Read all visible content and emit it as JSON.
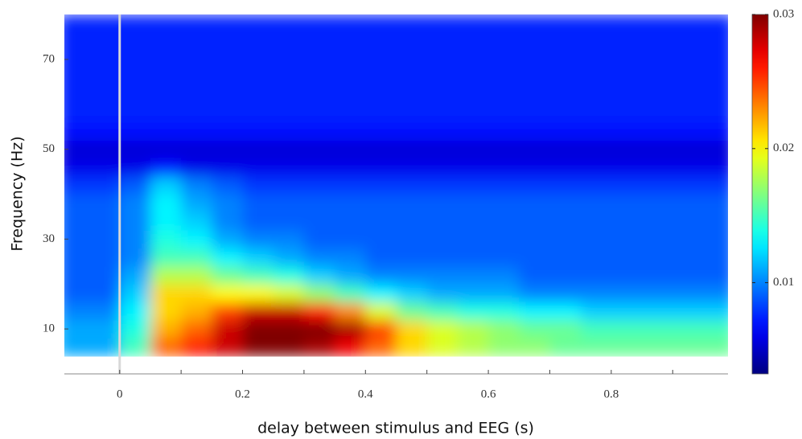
{
  "chart_data": {
    "type": "heatmap",
    "xlabel": "delay between stimulus and EEG (s)",
    "ylabel": "Frequency (Hz)",
    "xlim": [
      -0.09,
      0.99
    ],
    "ylim": [
      0,
      80
    ],
    "xticks": [
      0,
      0.2,
      0.4,
      0.6,
      0.8
    ],
    "xminorticks": [
      0.1,
      0.3,
      0.5,
      0.7,
      0.9
    ],
    "yticks": [
      10,
      30,
      50,
      70
    ],
    "clim": [
      0.0032,
      0.03
    ],
    "cticks": [
      0.01,
      0.02,
      0.03
    ],
    "colormap": "jet",
    "vertical_line": {
      "x": 0,
      "color": "#d8d8d8"
    },
    "x": [
      -0.075,
      -0.025,
      0.025,
      0.075,
      0.125,
      0.175,
      0.225,
      0.275,
      0.325,
      0.375,
      0.425,
      0.475,
      0.525,
      0.575,
      0.625,
      0.675,
      0.725,
      0.775,
      0.825,
      0.875,
      0.925,
      0.975
    ],
    "y": [
      6,
      10,
      14,
      18,
      22,
      26,
      30,
      34,
      38,
      42,
      46,
      50,
      54,
      58,
      62,
      66,
      70,
      74,
      78
    ],
    "z": [
      [
        0.011,
        0.011,
        0.015,
        0.024,
        0.026,
        0.028,
        0.031,
        0.031,
        0.029,
        0.027,
        0.024,
        0.021,
        0.019,
        0.018,
        0.017,
        0.017,
        0.016,
        0.016,
        0.016,
        0.016,
        0.016,
        0.016
      ],
      [
        0.011,
        0.011,
        0.014,
        0.022,
        0.024,
        0.028,
        0.031,
        0.032,
        0.031,
        0.029,
        0.025,
        0.021,
        0.019,
        0.018,
        0.017,
        0.016,
        0.016,
        0.015,
        0.015,
        0.015,
        0.015,
        0.015
      ],
      [
        0.01,
        0.01,
        0.013,
        0.021,
        0.022,
        0.025,
        0.028,
        0.028,
        0.026,
        0.023,
        0.019,
        0.016,
        0.015,
        0.014,
        0.014,
        0.013,
        0.013,
        0.012,
        0.012,
        0.012,
        0.012,
        0.012
      ],
      [
        0.009,
        0.009,
        0.012,
        0.021,
        0.021,
        0.02,
        0.02,
        0.019,
        0.017,
        0.015,
        0.013,
        0.012,
        0.011,
        0.011,
        0.011,
        0.01,
        0.01,
        0.01,
        0.01,
        0.01,
        0.01,
        0.01
      ],
      [
        0.009,
        0.009,
        0.011,
        0.018,
        0.018,
        0.016,
        0.015,
        0.014,
        0.012,
        0.011,
        0.01,
        0.01,
        0.01,
        0.01,
        0.01,
        0.009,
        0.009,
        0.009,
        0.009,
        0.009,
        0.009,
        0.009
      ],
      [
        0.009,
        0.009,
        0.01,
        0.015,
        0.015,
        0.013,
        0.012,
        0.011,
        0.01,
        0.01,
        0.009,
        0.009,
        0.009,
        0.009,
        0.009,
        0.009,
        0.009,
        0.009,
        0.009,
        0.009,
        0.009,
        0.009
      ],
      [
        0.009,
        0.009,
        0.01,
        0.014,
        0.013,
        0.011,
        0.01,
        0.01,
        0.009,
        0.009,
        0.009,
        0.009,
        0.009,
        0.009,
        0.009,
        0.009,
        0.009,
        0.009,
        0.009,
        0.009,
        0.009,
        0.009
      ],
      [
        0.009,
        0.009,
        0.01,
        0.013,
        0.012,
        0.01,
        0.009,
        0.009,
        0.009,
        0.009,
        0.009,
        0.009,
        0.009,
        0.009,
        0.009,
        0.009,
        0.009,
        0.009,
        0.009,
        0.009,
        0.009,
        0.009
      ],
      [
        0.009,
        0.009,
        0.01,
        0.013,
        0.011,
        0.01,
        0.009,
        0.009,
        0.009,
        0.009,
        0.009,
        0.009,
        0.009,
        0.009,
        0.009,
        0.009,
        0.009,
        0.009,
        0.009,
        0.009,
        0.009,
        0.009
      ],
      [
        0.008,
        0.008,
        0.009,
        0.012,
        0.01,
        0.009,
        0.008,
        0.008,
        0.008,
        0.008,
        0.008,
        0.008,
        0.008,
        0.008,
        0.008,
        0.008,
        0.008,
        0.008,
        0.008,
        0.008,
        0.008,
        0.008
      ],
      [
        0.006,
        0.006,
        0.006,
        0.007,
        0.006,
        0.006,
        0.006,
        0.006,
        0.006,
        0.006,
        0.006,
        0.006,
        0.006,
        0.006,
        0.006,
        0.006,
        0.006,
        0.006,
        0.006,
        0.006,
        0.006,
        0.006
      ],
      [
        0.0055,
        0.0055,
        0.0055,
        0.0055,
        0.0055,
        0.0055,
        0.0055,
        0.0055,
        0.0055,
        0.0055,
        0.0055,
        0.0055,
        0.0055,
        0.0055,
        0.0055,
        0.0055,
        0.0055,
        0.0055,
        0.0055,
        0.0055,
        0.0055,
        0.0055
      ],
      [
        0.007,
        0.007,
        0.007,
        0.007,
        0.007,
        0.007,
        0.007,
        0.007,
        0.007,
        0.007,
        0.007,
        0.007,
        0.007,
        0.007,
        0.007,
        0.007,
        0.007,
        0.007,
        0.007,
        0.007,
        0.007,
        0.007
      ],
      [
        0.0075,
        0.0075,
        0.0075,
        0.0075,
        0.0075,
        0.0075,
        0.0075,
        0.0075,
        0.0075,
        0.0075,
        0.0075,
        0.0075,
        0.0075,
        0.0075,
        0.0075,
        0.0075,
        0.0075,
        0.0075,
        0.0075,
        0.0075,
        0.0075,
        0.0075
      ],
      [
        0.0075,
        0.0075,
        0.0075,
        0.0075,
        0.0075,
        0.0075,
        0.0075,
        0.0075,
        0.0075,
        0.0075,
        0.0075,
        0.0075,
        0.0075,
        0.0075,
        0.0075,
        0.0075,
        0.0075,
        0.0075,
        0.0075,
        0.0075,
        0.0075,
        0.0075
      ],
      [
        0.0075,
        0.0075,
        0.0075,
        0.0075,
        0.0075,
        0.0075,
        0.0075,
        0.0075,
        0.0075,
        0.0075,
        0.0075,
        0.0075,
        0.0075,
        0.0075,
        0.0075,
        0.0075,
        0.0075,
        0.0075,
        0.0075,
        0.0075,
        0.0075,
        0.0075
      ],
      [
        0.0075,
        0.0075,
        0.0075,
        0.0075,
        0.0075,
        0.0075,
        0.0075,
        0.0075,
        0.0075,
        0.0075,
        0.0075,
        0.0075,
        0.0075,
        0.0075,
        0.0075,
        0.0075,
        0.0075,
        0.0075,
        0.0075,
        0.0075,
        0.0075,
        0.0075
      ],
      [
        0.0075,
        0.0075,
        0.0075,
        0.0075,
        0.0075,
        0.0075,
        0.0075,
        0.0075,
        0.0075,
        0.0075,
        0.0075,
        0.0075,
        0.0075,
        0.0075,
        0.0075,
        0.0075,
        0.0075,
        0.0075,
        0.0075,
        0.0075,
        0.0075,
        0.0075
      ],
      [
        0.0075,
        0.0075,
        0.0075,
        0.0075,
        0.0075,
        0.0075,
        0.0075,
        0.0075,
        0.0075,
        0.0075,
        0.0075,
        0.0075,
        0.0075,
        0.0075,
        0.0075,
        0.0075,
        0.0075,
        0.0075,
        0.0075,
        0.0075,
        0.0075,
        0.0075
      ]
    ]
  }
}
